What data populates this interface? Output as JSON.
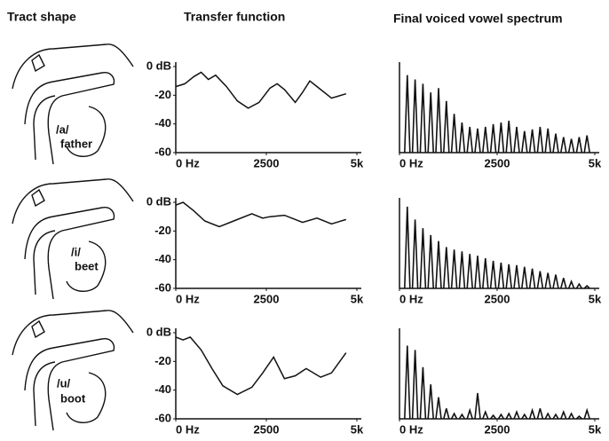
{
  "headers": [
    "Tract shape",
    "Transfer function",
    "Final voiced vowel spectrum"
  ],
  "rows": [
    {
      "vowel": "/a/",
      "word": "father"
    },
    {
      "vowel": "/i/",
      "word": "beet"
    },
    {
      "vowel": "/u/",
      "word": "boot"
    }
  ],
  "chart_data": [
    {
      "type": "line",
      "x": [
        0,
        250,
        500,
        700,
        900,
        1100,
        1400,
        1700,
        2000,
        2300,
        2600,
        2800,
        3000,
        3300,
        3500,
        3700,
        3900,
        4300,
        4700
      ],
      "values": [
        -14,
        -12,
        -7,
        -4,
        -9,
        -6,
        -14,
        -24,
        -29,
        -25,
        -15,
        -12,
        -16,
        -25,
        -18,
        -10,
        -14,
        -22,
        -19
      ],
      "xlim": [
        0,
        5000
      ],
      "ylim": [
        -60,
        0
      ],
      "color": "#111",
      "xticks": [
        {
          "value": 0,
          "label": "0 Hz"
        },
        2500,
        {
          "value": 5000,
          "label": "5k"
        }
      ],
      "yticks": [
        {
          "value": 0,
          "label": "0 dB"
        },
        -20,
        -40,
        -60
      ]
    },
    {
      "type": "stem",
      "x": [
        200,
        400,
        600,
        800,
        1000,
        1200,
        1400,
        1600,
        1800,
        2000,
        2200,
        2400,
        2600,
        2800,
        3000,
        3200,
        3400,
        3600,
        3800,
        4000,
        4200,
        4400,
        4600,
        4800
      ],
      "values": [
        90,
        85,
        80,
        70,
        75,
        60,
        45,
        35,
        30,
        28,
        30,
        33,
        35,
        37,
        30,
        25,
        27,
        30,
        28,
        22,
        18,
        16,
        18,
        20
      ],
      "xlim": [
        0,
        5000
      ],
      "ylim": [
        0,
        100
      ],
      "color": "#111",
      "xticks": [
        {
          "value": 0,
          "label": "0 Hz"
        },
        2500,
        {
          "value": 5000,
          "label": "5k"
        }
      ]
    },
    {
      "type": "line",
      "x": [
        0,
        200,
        500,
        800,
        1200,
        1600,
        2100,
        2400,
        2600,
        3000,
        3500,
        3900,
        4300,
        4700
      ],
      "values": [
        -2,
        0,
        -6,
        -13,
        -17,
        -13,
        -8,
        -11,
        -10,
        -9,
        -14,
        -11,
        -15,
        -12
      ],
      "xlim": [
        0,
        5000
      ],
      "ylim": [
        -60,
        0
      ],
      "color": "#111",
      "xticks": [
        {
          "value": 0,
          "label": "0 Hz"
        },
        2500,
        {
          "value": 5000,
          "label": "5k"
        }
      ],
      "yticks": [
        {
          "value": 0,
          "label": "0 dB"
        },
        -20,
        -40,
        -60
      ]
    },
    {
      "type": "stem",
      "x": [
        200,
        400,
        600,
        800,
        1000,
        1200,
        1400,
        1600,
        1800,
        2000,
        2200,
        2400,
        2600,
        2800,
        3000,
        3200,
        3400,
        3600,
        3800,
        4000,
        4200,
        4400,
        4600,
        4800
      ],
      "values": [
        95,
        80,
        70,
        62,
        55,
        48,
        45,
        43,
        40,
        38,
        35,
        32,
        30,
        28,
        27,
        25,
        23,
        20,
        18,
        16,
        12,
        8,
        5,
        3
      ],
      "xlim": [
        0,
        5000
      ],
      "ylim": [
        0,
        100
      ],
      "color": "#111",
      "xticks": [
        {
          "value": 0,
          "label": "0 Hz"
        },
        2500,
        {
          "value": 5000,
          "label": "5k"
        }
      ]
    },
    {
      "type": "line",
      "x": [
        0,
        200,
        400,
        700,
        1000,
        1300,
        1700,
        2100,
        2400,
        2700,
        3000,
        3300,
        3600,
        4000,
        4300,
        4700
      ],
      "values": [
        -3,
        -5,
        -3,
        -12,
        -25,
        -37,
        -43,
        -38,
        -28,
        -17,
        -32,
        -30,
        -25,
        -31,
        -28,
        -14
      ],
      "xlim": [
        0,
        5000
      ],
      "ylim": [
        -60,
        0
      ],
      "color": "#111",
      "xticks": [
        {
          "value": 0,
          "label": "0 Hz"
        },
        2500,
        {
          "value": 5000,
          "label": "5k"
        }
      ],
      "yticks": [
        {
          "value": 0,
          "label": "0 dB"
        },
        -20,
        -40,
        -60
      ]
    },
    {
      "type": "stem",
      "x": [
        200,
        400,
        600,
        800,
        1000,
        1200,
        1400,
        1600,
        1800,
        2000,
        2200,
        2400,
        2600,
        2800,
        3000,
        3200,
        3400,
        3600,
        3800,
        4000,
        4200,
        4400,
        4600,
        4800
      ],
      "values": [
        85,
        80,
        60,
        40,
        25,
        12,
        6,
        5,
        10,
        30,
        8,
        4,
        5,
        6,
        8,
        5,
        10,
        12,
        6,
        5,
        8,
        6,
        3,
        10
      ],
      "xlim": [
        0,
        5000
      ],
      "ylim": [
        0,
        100
      ],
      "color": "#111",
      "xticks": [
        {
          "value": 0,
          "label": "0 Hz"
        },
        2500,
        {
          "value": 5000,
          "label": "5k"
        }
      ]
    }
  ]
}
